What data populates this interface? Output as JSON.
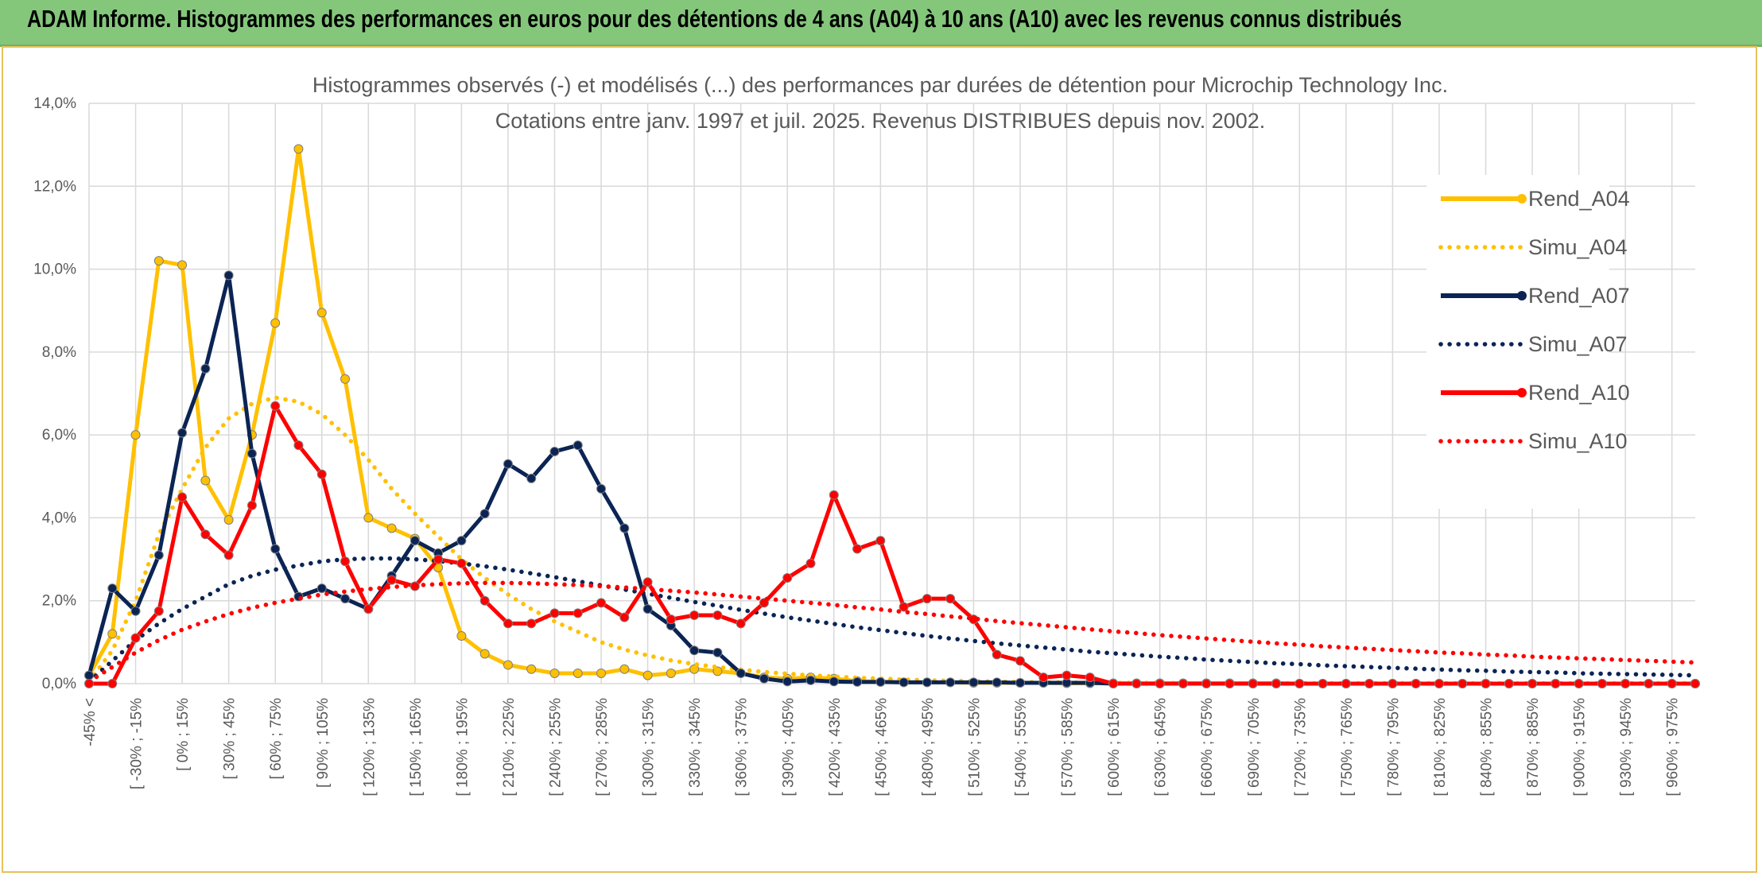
{
  "header": {
    "title": "ADAM Informe. Histogrammes des performances en euros pour des détentions de 4 ans (A04) à 10 ans (A10) avec les revenus connus distribués"
  },
  "chart_data": {
    "type": "line",
    "title": "Histogrammes observés (-) et modélisés (...) des performances par durées de détention pour Microchip Technology Inc.",
    "subtitle": "Cotations entre janv. 1997 et juil. 2025. Revenus DISTRIBUES depuis nov. 2002.",
    "xlabel": "",
    "ylabel": "",
    "ylim": [
      0,
      14
    ],
    "y_ticks": [
      "0,0%",
      "2,0%",
      "4,0%",
      "6,0%",
      "8,0%",
      "10,0%",
      "12,0%",
      "14,0%"
    ],
    "grid": true,
    "legend_position": "right",
    "x_tick_labels": [
      "-45% <",
      "[ -30% ; -15%",
      "[ 0% ; 15%",
      "[ 30% ; 45%",
      "[ 60% ; 75%",
      "[ 90% ; 105%",
      "[ 120% ; 135%",
      "[ 150% ; 165%",
      "[ 180% ; 195%",
      "[ 210% ; 225%",
      "[ 240% ; 255%",
      "[ 270% ; 285%",
      "[ 300% ; 315%",
      "[ 330% ; 345%",
      "[ 360% ; 375%",
      "[ 390% ; 405%",
      "[ 420% ; 435%",
      "[ 450% ; 465%",
      "[ 480% ; 495%",
      "[ 510% ; 525%",
      "[ 540% ; 555%",
      "[ 570% ; 585%",
      "[ 600% ; 615%",
      "[ 630% ; 645%",
      "[ 660% ; 675%",
      "[ 690% ; 705%",
      "[ 720% ; 735%",
      "[ 750% ; 765%",
      "[ 780% ; 795%",
      "[ 810% ; 825%",
      "[ 840% ; 855%",
      "[ 870% ; 885%",
      "[ 900% ; 915%",
      "[ 930% ; 945%",
      "[ 960% ; 975%"
    ],
    "x_points": 70,
    "series": [
      {
        "name": "Rend_A04",
        "style": "solid",
        "color": "#ffc000",
        "markers": true,
        "values": [
          0.2,
          1.2,
          6.0,
          10.2,
          10.1,
          4.9,
          3.95,
          6.0,
          8.7,
          12.9,
          8.95,
          7.35,
          4.0,
          3.75,
          3.5,
          2.8,
          1.15,
          0.72,
          0.45,
          0.35,
          0.25,
          0.25,
          0.25,
          0.35,
          0.2,
          0.25,
          0.35,
          0.3,
          0.25,
          0.15,
          0.12,
          0.15,
          0.12,
          0.06,
          0.04,
          0.03,
          0.03,
          0.03,
          0.02,
          0.02,
          0.02,
          0.02,
          0.01,
          0.01,
          0.01,
          0.01,
          0.01,
          0.01,
          0.01,
          0.01,
          0.01,
          0.01,
          0.0,
          0.0,
          0.0,
          0.0,
          0.0,
          0.0,
          0.0,
          0.0,
          0.0,
          0.0,
          0.0,
          0.0,
          0.0,
          0.0,
          0.0,
          0.0,
          0.0,
          0.0
        ]
      },
      {
        "name": "Simu_A04",
        "style": "dotted",
        "color": "#ffc000",
        "markers": false,
        "values": [
          0.05,
          0.8,
          2.0,
          3.6,
          4.7,
          5.7,
          6.4,
          6.75,
          6.9,
          6.8,
          6.5,
          6.0,
          5.4,
          4.7,
          4.1,
          3.55,
          3.0,
          2.55,
          2.15,
          1.8,
          1.5,
          1.25,
          1.0,
          0.82,
          0.68,
          0.56,
          0.47,
          0.4,
          0.34,
          0.28,
          0.24,
          0.2,
          0.17,
          0.14,
          0.12,
          0.1,
          0.08,
          0.07,
          0.06,
          0.05,
          0.04,
          0.03,
          0.03,
          0.02,
          0.02,
          0.02,
          0.02,
          0.01,
          0.01,
          0.01,
          0.01,
          0.01,
          0.01,
          0.01,
          0.01,
          0.01,
          0.01,
          0.01,
          0.01,
          0.01,
          0.01,
          0.01,
          0.01,
          0.01,
          0.01,
          0.01,
          0.01,
          0.01,
          0.01,
          0.01
        ]
      },
      {
        "name": "Rend_A07",
        "style": "solid",
        "color": "#0b2454",
        "markers": true,
        "values": [
          0.2,
          2.3,
          1.75,
          3.1,
          6.05,
          7.6,
          9.85,
          5.55,
          3.25,
          2.1,
          2.3,
          2.05,
          1.8,
          2.6,
          3.45,
          3.15,
          3.45,
          4.1,
          5.3,
          4.95,
          5.6,
          5.75,
          4.7,
          3.75,
          1.8,
          1.4,
          0.8,
          0.75,
          0.25,
          0.12,
          0.05,
          0.08,
          0.05,
          0.04,
          0.04,
          0.03,
          0.03,
          0.03,
          0.03,
          0.03,
          0.02,
          0.02,
          0.02,
          0.02,
          0.0,
          0.0,
          0.0,
          0.0,
          0.0,
          0.0,
          0.0,
          0.0,
          0.0,
          0.0,
          0.0,
          0.0,
          0.0,
          0.0,
          0.0,
          0.0,
          0.0,
          0.0,
          0.0,
          0.0,
          0.0,
          0.0,
          0.0,
          0.0,
          0.0,
          0.0
        ]
      },
      {
        "name": "Simu_A07",
        "style": "dotted",
        "color": "#0b2454",
        "markers": false,
        "values": [
          0.05,
          0.55,
          1.05,
          1.45,
          1.8,
          2.1,
          2.4,
          2.6,
          2.75,
          2.85,
          2.95,
          3.0,
          3.02,
          3.02,
          3.0,
          2.96,
          2.9,
          2.83,
          2.75,
          2.66,
          2.57,
          2.47,
          2.37,
          2.27,
          2.17,
          2.07,
          1.97,
          1.88,
          1.78,
          1.69,
          1.6,
          1.52,
          1.44,
          1.36,
          1.29,
          1.22,
          1.15,
          1.09,
          1.03,
          0.97,
          0.92,
          0.87,
          0.82,
          0.77,
          0.73,
          0.69,
          0.65,
          0.62,
          0.58,
          0.55,
          0.52,
          0.49,
          0.47,
          0.44,
          0.42,
          0.4,
          0.38,
          0.36,
          0.34,
          0.32,
          0.31,
          0.29,
          0.28,
          0.27,
          0.25,
          0.24,
          0.23,
          0.22,
          0.21,
          0.2
        ]
      },
      {
        "name": "Rend_A10",
        "style": "solid",
        "color": "#ff0000",
        "markers": true,
        "values": [
          0.0,
          0.0,
          1.1,
          1.75,
          4.5,
          3.6,
          3.1,
          4.3,
          6.7,
          5.75,
          5.05,
          2.95,
          1.8,
          2.5,
          2.35,
          3.0,
          2.9,
          2.0,
          1.45,
          1.45,
          1.7,
          1.7,
          1.95,
          1.6,
          2.45,
          1.55,
          1.65,
          1.65,
          1.45,
          1.95,
          2.55,
          2.9,
          4.55,
          3.25,
          3.45,
          1.85,
          2.05,
          2.05,
          1.55,
          0.7,
          0.55,
          0.15,
          0.2,
          0.15,
          0.0,
          0.0,
          0.0,
          0.0,
          0.0,
          0.0,
          0.0,
          0.0,
          0.0,
          0.0,
          0.0,
          0.0,
          0.0,
          0.0,
          0.0,
          0.0,
          0.0,
          0.0,
          0.0,
          0.0,
          0.0,
          0.0,
          0.0,
          0.0,
          0.0,
          0.0
        ]
      },
      {
        "name": "Simu_A10",
        "style": "dotted",
        "color": "#ff0000",
        "markers": false,
        "values": [
          0.05,
          0.4,
          0.75,
          1.05,
          1.3,
          1.5,
          1.68,
          1.83,
          1.95,
          2.05,
          2.15,
          2.22,
          2.28,
          2.33,
          2.37,
          2.4,
          2.42,
          2.43,
          2.43,
          2.42,
          2.4,
          2.38,
          2.35,
          2.32,
          2.28,
          2.24,
          2.2,
          2.15,
          2.1,
          2.05,
          2.0,
          1.95,
          1.9,
          1.84,
          1.79,
          1.73,
          1.68,
          1.62,
          1.57,
          1.51,
          1.46,
          1.41,
          1.36,
          1.31,
          1.26,
          1.22,
          1.17,
          1.13,
          1.09,
          1.05,
          1.01,
          0.97,
          0.94,
          0.9,
          0.87,
          0.84,
          0.81,
          0.78,
          0.75,
          0.73,
          0.7,
          0.68,
          0.65,
          0.63,
          0.61,
          0.59,
          0.57,
          0.55,
          0.53,
          0.51
        ]
      }
    ]
  }
}
